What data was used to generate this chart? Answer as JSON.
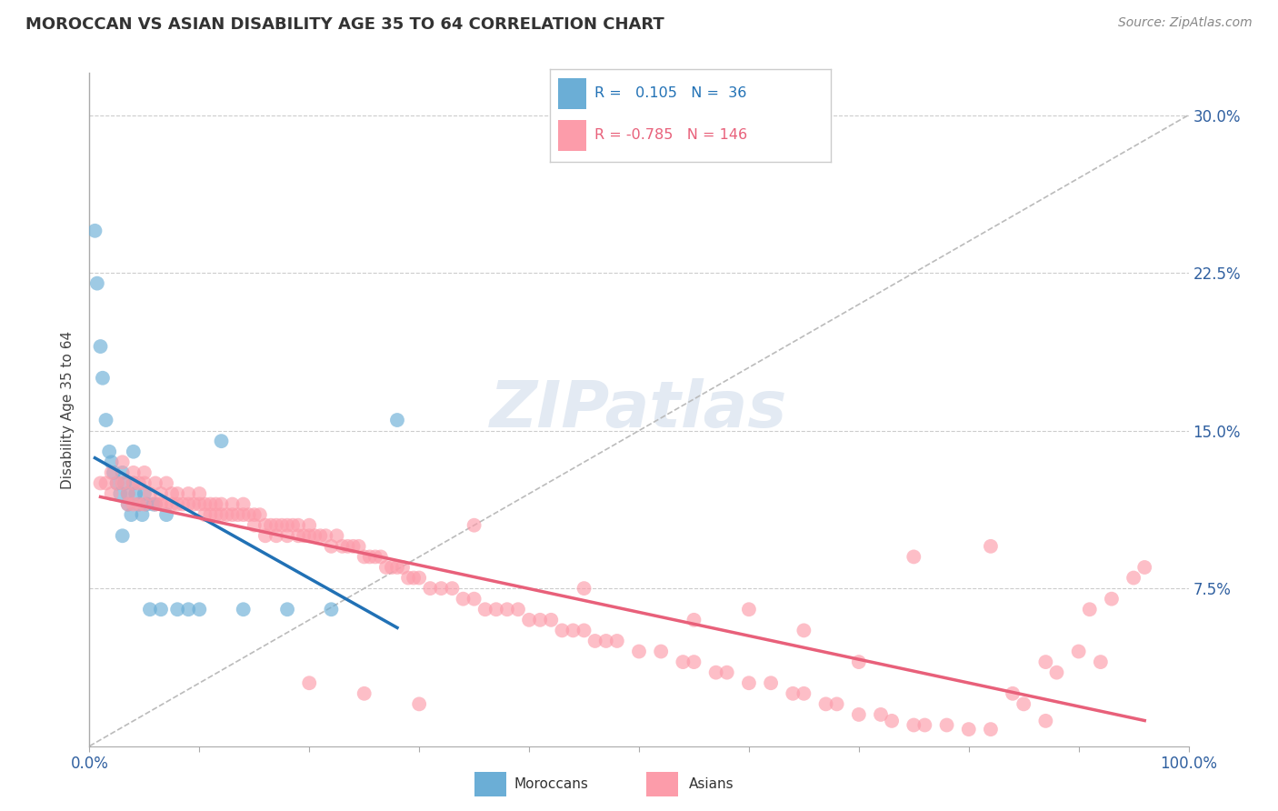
{
  "title": "MOROCCAN VS ASIAN DISABILITY AGE 35 TO 64 CORRELATION CHART",
  "source": "Source: ZipAtlas.com",
  "ylabel": "Disability Age 35 to 64",
  "ytick_labels": [
    "7.5%",
    "15.0%",
    "22.5%",
    "30.0%"
  ],
  "ytick_values": [
    0.075,
    0.15,
    0.225,
    0.3
  ],
  "xlim": [
    0.0,
    1.0
  ],
  "ylim": [
    0.0,
    0.32
  ],
  "legend_moroccan": "Moroccans",
  "legend_asian": "Asians",
  "r_moroccan": 0.105,
  "n_moroccan": 36,
  "r_asian": -0.785,
  "n_asian": 146,
  "moroccan_color": "#6baed6",
  "asian_color": "#fc9caa",
  "moroccan_line_color": "#2171b5",
  "asian_line_color": "#e8607a",
  "diagonal_color": "#bbbbbb",
  "background_color": "#ffffff",
  "moroccan_x": [
    0.005,
    0.007,
    0.01,
    0.012,
    0.015,
    0.018,
    0.02,
    0.022,
    0.025,
    0.028,
    0.03,
    0.032,
    0.035,
    0.035,
    0.038,
    0.04,
    0.04,
    0.042,
    0.045,
    0.048,
    0.05,
    0.052,
    0.055,
    0.058,
    0.06,
    0.065,
    0.07,
    0.08,
    0.09,
    0.1,
    0.12,
    0.14,
    0.18,
    0.22,
    0.28,
    0.03
  ],
  "moroccan_y": [
    0.245,
    0.22,
    0.19,
    0.175,
    0.155,
    0.14,
    0.135,
    0.13,
    0.125,
    0.12,
    0.13,
    0.125,
    0.12,
    0.115,
    0.11,
    0.14,
    0.125,
    0.12,
    0.115,
    0.11,
    0.12,
    0.115,
    0.065,
    0.115,
    0.115,
    0.065,
    0.11,
    0.065,
    0.065,
    0.065,
    0.145,
    0.065,
    0.065,
    0.065,
    0.155,
    0.1
  ],
  "asian_x": [
    0.01,
    0.015,
    0.02,
    0.02,
    0.025,
    0.03,
    0.03,
    0.035,
    0.035,
    0.04,
    0.04,
    0.04,
    0.045,
    0.045,
    0.05,
    0.05,
    0.05,
    0.055,
    0.06,
    0.06,
    0.065,
    0.065,
    0.07,
    0.07,
    0.075,
    0.075,
    0.08,
    0.08,
    0.085,
    0.09,
    0.09,
    0.095,
    0.1,
    0.1,
    0.105,
    0.105,
    0.11,
    0.11,
    0.115,
    0.115,
    0.12,
    0.12,
    0.125,
    0.13,
    0.13,
    0.135,
    0.14,
    0.14,
    0.145,
    0.15,
    0.15,
    0.155,
    0.16,
    0.16,
    0.165,
    0.17,
    0.17,
    0.175,
    0.18,
    0.18,
    0.185,
    0.19,
    0.19,
    0.195,
    0.2,
    0.2,
    0.205,
    0.21,
    0.215,
    0.22,
    0.225,
    0.23,
    0.235,
    0.24,
    0.245,
    0.25,
    0.255,
    0.26,
    0.265,
    0.27,
    0.275,
    0.28,
    0.285,
    0.29,
    0.295,
    0.3,
    0.31,
    0.32,
    0.33,
    0.34,
    0.35,
    0.36,
    0.37,
    0.38,
    0.39,
    0.4,
    0.41,
    0.42,
    0.43,
    0.44,
    0.45,
    0.46,
    0.47,
    0.48,
    0.5,
    0.52,
    0.54,
    0.55,
    0.57,
    0.58,
    0.6,
    0.62,
    0.64,
    0.65,
    0.67,
    0.68,
    0.7,
    0.72,
    0.73,
    0.75,
    0.76,
    0.78,
    0.8,
    0.82,
    0.84,
    0.85,
    0.87,
    0.88,
    0.9,
    0.91,
    0.92,
    0.93,
    0.95,
    0.96,
    0.75,
    0.82,
    0.87,
    0.65,
    0.55,
    0.6,
    0.7,
    0.45,
    0.35,
    0.3,
    0.25,
    0.2
  ],
  "asian_y": [
    0.125,
    0.125,
    0.13,
    0.12,
    0.125,
    0.135,
    0.125,
    0.12,
    0.115,
    0.13,
    0.125,
    0.115,
    0.125,
    0.115,
    0.13,
    0.125,
    0.115,
    0.12,
    0.125,
    0.115,
    0.12,
    0.115,
    0.125,
    0.115,
    0.12,
    0.115,
    0.12,
    0.115,
    0.115,
    0.12,
    0.115,
    0.115,
    0.12,
    0.115,
    0.115,
    0.11,
    0.115,
    0.11,
    0.115,
    0.11,
    0.115,
    0.11,
    0.11,
    0.115,
    0.11,
    0.11,
    0.115,
    0.11,
    0.11,
    0.11,
    0.105,
    0.11,
    0.105,
    0.1,
    0.105,
    0.105,
    0.1,
    0.105,
    0.105,
    0.1,
    0.105,
    0.105,
    0.1,
    0.1,
    0.105,
    0.1,
    0.1,
    0.1,
    0.1,
    0.095,
    0.1,
    0.095,
    0.095,
    0.095,
    0.095,
    0.09,
    0.09,
    0.09,
    0.09,
    0.085,
    0.085,
    0.085,
    0.085,
    0.08,
    0.08,
    0.08,
    0.075,
    0.075,
    0.075,
    0.07,
    0.07,
    0.065,
    0.065,
    0.065,
    0.065,
    0.06,
    0.06,
    0.06,
    0.055,
    0.055,
    0.055,
    0.05,
    0.05,
    0.05,
    0.045,
    0.045,
    0.04,
    0.04,
    0.035,
    0.035,
    0.03,
    0.03,
    0.025,
    0.025,
    0.02,
    0.02,
    0.015,
    0.015,
    0.012,
    0.01,
    0.01,
    0.01,
    0.008,
    0.008,
    0.025,
    0.02,
    0.012,
    0.035,
    0.045,
    0.065,
    0.04,
    0.07,
    0.08,
    0.085,
    0.09,
    0.095,
    0.04,
    0.055,
    0.06,
    0.065,
    0.04,
    0.075,
    0.105,
    0.02,
    0.025,
    0.03
  ]
}
